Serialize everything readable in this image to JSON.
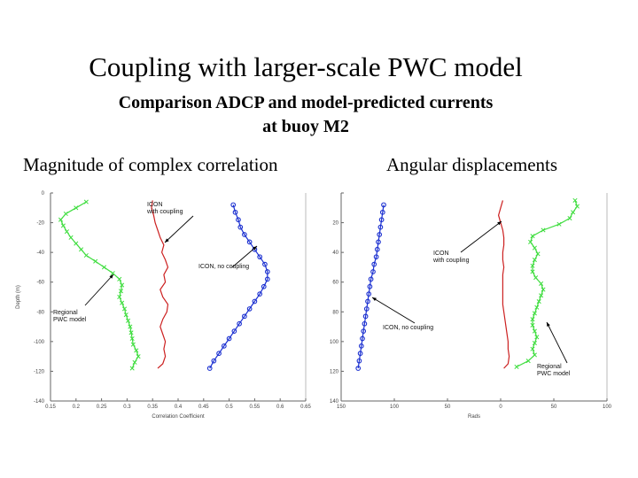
{
  "title": "Coupling with larger-scale PWC model",
  "subtitle": [
    "Comparison ADCP and model-predicted currents",
    "at buoy M2"
  ],
  "panels": {
    "left_label": "Magnitude of complex correlation",
    "right_label": "Angular displacements"
  },
  "colors": {
    "coupling": "#cc2020",
    "no_coupling": "#1a2fd0",
    "regional": "#3fdd3f",
    "axis": "#666666"
  },
  "chart_data": [
    {
      "type": "line",
      "title": "",
      "xlabel": "Correlation Coefficient",
      "ylabel": "Depth (m)",
      "xlim": [
        0.15,
        0.65
      ],
      "ylim": [
        -140,
        0
      ],
      "xticks": [
        "0.15",
        "0.2",
        "0.25",
        "0.3",
        "0.35",
        "0.4",
        "0.45",
        "0.5",
        "0.55",
        "0.6",
        "0.65"
      ],
      "yticks": [
        "0",
        "-20",
        "-40",
        "-60",
        "-80",
        "-100",
        "-120",
        "-140"
      ],
      "annotations": [
        {
          "text": [
            "ICON",
            "with coupling"
          ],
          "series": "ICON with coupling"
        },
        {
          "text": [
            "ICON, no coupling"
          ],
          "series": "ICON, no coupling"
        },
        {
          "text": [
            "Regional",
            "PWC model"
          ],
          "series": "Regional PWC model"
        }
      ],
      "series": [
        {
          "name": "ICON with coupling",
          "marker": "none",
          "color_key": "coupling",
          "points": [
            [
              0.35,
              -5
            ],
            [
              0.348,
              -10
            ],
            [
              0.352,
              -15
            ],
            [
              0.355,
              -20
            ],
            [
              0.36,
              -25
            ],
            [
              0.365,
              -30
            ],
            [
              0.372,
              -35
            ],
            [
              0.368,
              -40
            ],
            [
              0.375,
              -45
            ],
            [
              0.38,
              -50
            ],
            [
              0.372,
              -55
            ],
            [
              0.375,
              -60
            ],
            [
              0.365,
              -65
            ],
            [
              0.37,
              -70
            ],
            [
              0.38,
              -75
            ],
            [
              0.378,
              -80
            ],
            [
              0.37,
              -85
            ],
            [
              0.365,
              -90
            ],
            [
              0.37,
              -95
            ],
            [
              0.375,
              -100
            ],
            [
              0.372,
              -105
            ],
            [
              0.375,
              -110
            ],
            [
              0.37,
              -115
            ],
            [
              0.36,
              -118
            ]
          ]
        },
        {
          "name": "ICON, no coupling",
          "marker": "circle",
          "color_key": "no_coupling",
          "points": [
            [
              0.508,
              -8
            ],
            [
              0.512,
              -13
            ],
            [
              0.518,
              -18
            ],
            [
              0.522,
              -23
            ],
            [
              0.53,
              -28
            ],
            [
              0.54,
              -33
            ],
            [
              0.55,
              -38
            ],
            [
              0.56,
              -43
            ],
            [
              0.57,
              -48
            ],
            [
              0.575,
              -53
            ],
            [
              0.575,
              -58
            ],
            [
              0.568,
              -63
            ],
            [
              0.56,
              -68
            ],
            [
              0.55,
              -73
            ],
            [
              0.54,
              -78
            ],
            [
              0.53,
              -83
            ],
            [
              0.52,
              -88
            ],
            [
              0.51,
              -93
            ],
            [
              0.5,
              -98
            ],
            [
              0.49,
              -103
            ],
            [
              0.48,
              -108
            ],
            [
              0.47,
              -113
            ],
            [
              0.462,
              -118
            ]
          ]
        },
        {
          "name": "Regional PWC model",
          "marker": "x",
          "color_key": "regional",
          "points": [
            [
              0.22,
              -6
            ],
            [
              0.2,
              -10
            ],
            [
              0.18,
              -14
            ],
            [
              0.17,
              -18
            ],
            [
              0.175,
              -22
            ],
            [
              0.182,
              -26
            ],
            [
              0.19,
              -30
            ],
            [
              0.2,
              -34
            ],
            [
              0.21,
              -38
            ],
            [
              0.22,
              -42
            ],
            [
              0.238,
              -46
            ],
            [
              0.255,
              -50
            ],
            [
              0.272,
              -54
            ],
            [
              0.285,
              -58
            ],
            [
              0.29,
              -62
            ],
            [
              0.288,
              -66
            ],
            [
              0.285,
              -70
            ],
            [
              0.29,
              -74
            ],
            [
              0.295,
              -78
            ],
            [
              0.298,
              -82
            ],
            [
              0.302,
              -86
            ],
            [
              0.306,
              -90
            ],
            [
              0.308,
              -94
            ],
            [
              0.31,
              -98
            ],
            [
              0.312,
              -102
            ],
            [
              0.318,
              -106
            ],
            [
              0.322,
              -110
            ],
            [
              0.315,
              -114
            ],
            [
              0.31,
              -118
            ]
          ]
        }
      ]
    },
    {
      "type": "line",
      "title": "",
      "xlabel": "Rads",
      "ylabel": "",
      "xlim": [
        -150,
        100
      ],
      "ylim": [
        -140,
        0
      ],
      "xticks": [
        "-150",
        "-100",
        "-50",
        "0",
        "50",
        "100"
      ],
      "xtick_labels": [
        "150",
        "100",
        "50",
        "0",
        "50",
        "100"
      ],
      "yticks": [
        "0",
        "-20",
        "-40",
        "-60",
        "-80",
        "-100",
        "-120",
        "-140"
      ],
      "yticks_shown": [
        "20",
        "40",
        "60",
        "80",
        "100",
        "120",
        "140"
      ],
      "annotations": [
        {
          "text": [
            "ICON",
            "with coupling"
          ],
          "series": "ICON with coupling"
        },
        {
          "text": [
            "ICON, no coupling"
          ],
          "series": "ICON, no coupling"
        },
        {
          "text": [
            "Regional",
            "PWC model"
          ],
          "series": "Regional PWC model"
        }
      ],
      "series": [
        {
          "name": "ICON with coupling",
          "marker": "none",
          "color_key": "coupling",
          "points": [
            [
              2,
              -5
            ],
            [
              0,
              -10
            ],
            [
              -2,
              -15
            ],
            [
              0,
              -20
            ],
            [
              2,
              -25
            ],
            [
              3,
              -30
            ],
            [
              3,
              -35
            ],
            [
              2,
              -40
            ],
            [
              2,
              -45
            ],
            [
              3,
              -50
            ],
            [
              2,
              -55
            ],
            [
              2,
              -60
            ],
            [
              2,
              -65
            ],
            [
              2,
              -70
            ],
            [
              2,
              -75
            ],
            [
              3,
              -80
            ],
            [
              4,
              -85
            ],
            [
              5,
              -90
            ],
            [
              6,
              -95
            ],
            [
              7,
              -100
            ],
            [
              7,
              -105
            ],
            [
              8,
              -110
            ],
            [
              7,
              -115
            ],
            [
              3,
              -118
            ]
          ]
        },
        {
          "name": "ICON, no coupling",
          "marker": "circle",
          "color_key": "no_coupling",
          "points": [
            [
              -110,
              -8
            ],
            [
              -111,
              -13
            ],
            [
              -112,
              -18
            ],
            [
              -113,
              -23
            ],
            [
              -114,
              -28
            ],
            [
              -115,
              -33
            ],
            [
              -116,
              -38
            ],
            [
              -117,
              -43
            ],
            [
              -119,
              -48
            ],
            [
              -120,
              -53
            ],
            [
              -122,
              -58
            ],
            [
              -123,
              -63
            ],
            [
              -124,
              -68
            ],
            [
              -125,
              -73
            ],
            [
              -126,
              -78
            ],
            [
              -127,
              -83
            ],
            [
              -128,
              -88
            ],
            [
              -129,
              -93
            ],
            [
              -130,
              -98
            ],
            [
              -131,
              -103
            ],
            [
              -132,
              -108
            ],
            [
              -133,
              -113
            ],
            [
              -134,
              -118
            ]
          ]
        },
        {
          "name": "Regional PWC model",
          "marker": "x",
          "color_key": "regional",
          "points": [
            [
              70,
              -5
            ],
            [
              72,
              -9
            ],
            [
              68,
              -13
            ],
            [
              65,
              -17
            ],
            [
              55,
              -21
            ],
            [
              40,
              -25
            ],
            [
              30,
              -29
            ],
            [
              28,
              -33
            ],
            [
              32,
              -37
            ],
            [
              35,
              -41
            ],
            [
              32,
              -45
            ],
            [
              30,
              -49
            ],
            [
              30,
              -53
            ],
            [
              33,
              -57
            ],
            [
              38,
              -61
            ],
            [
              40,
              -65
            ],
            [
              38,
              -69
            ],
            [
              36,
              -73
            ],
            [
              34,
              -77
            ],
            [
              32,
              -81
            ],
            [
              30,
              -85
            ],
            [
              30,
              -89
            ],
            [
              32,
              -93
            ],
            [
              34,
              -97
            ],
            [
              32,
              -101
            ],
            [
              30,
              -105
            ],
            [
              32,
              -109
            ],
            [
              26,
              -113
            ],
            [
              15,
              -117
            ]
          ]
        }
      ]
    }
  ]
}
